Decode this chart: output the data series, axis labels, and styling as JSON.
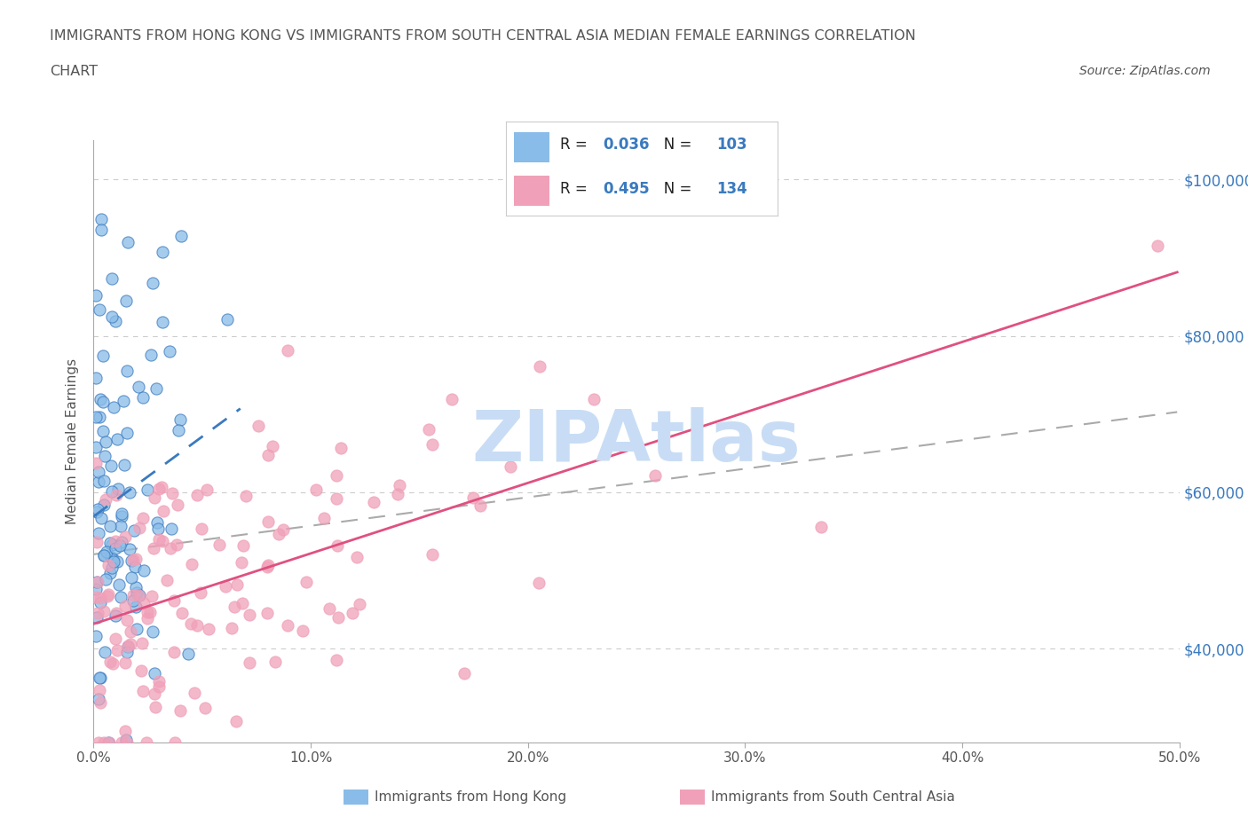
{
  "title_line1": "IMMIGRANTS FROM HONG KONG VS IMMIGRANTS FROM SOUTH CENTRAL ASIA MEDIAN FEMALE EARNINGS CORRELATION",
  "title_line2": "CHART",
  "source_text": "Source: ZipAtlas.com",
  "ylabel": "Median Female Earnings",
  "xlim": [
    0.0,
    0.5
  ],
  "ylim": [
    28000,
    105000
  ],
  "xtick_labels": [
    "0.0%",
    "10.0%",
    "20.0%",
    "30.0%",
    "40.0%",
    "50.0%"
  ],
  "xtick_values": [
    0.0,
    0.1,
    0.2,
    0.3,
    0.4,
    0.5
  ],
  "ytick_values": [
    40000,
    60000,
    80000,
    100000
  ],
  "ytick_labels_right": [
    "$40,000",
    "$60,000",
    "$80,000",
    "$100,000"
  ],
  "hk_R": 0.036,
  "hk_N": 103,
  "sca_R": 0.495,
  "sca_N": 134,
  "hk_color": "#89bce8",
  "sca_color": "#f0a0b8",
  "hk_line_color": "#3a7abf",
  "sca_line_color": "#e05080",
  "grey_line_color": "#aaaaaa",
  "right_label_color": "#3a7abf",
  "title_color": "#555555",
  "watermark_color": "#c8ddf5",
  "watermark_text": "ZIPAtlas",
  "legend_border_color": "#cccccc",
  "bottom_legend_hk": "Immigrants from Hong Kong",
  "bottom_legend_sca": "Immigrants from South Central Asia"
}
